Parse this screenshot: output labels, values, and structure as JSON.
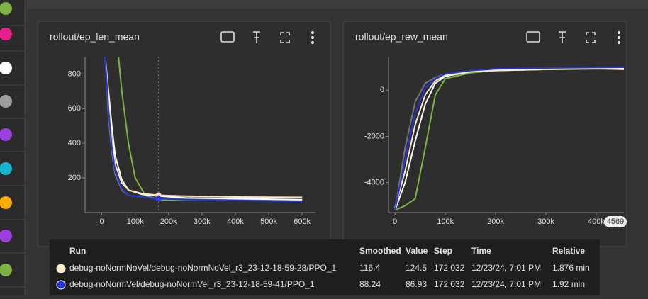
{
  "sidebar_colors": [
    "#7cb342",
    "#e91e8c",
    "#ffffff",
    "#9e9e9e",
    "#9c3fe0",
    "#12b5cb",
    "#f9ab00",
    "#9c3fe0",
    "#7cb342"
  ],
  "charts": [
    {
      "title": "rollout/ep_len_mean",
      "xlim": [
        -50000,
        640000
      ],
      "ylim": [
        0,
        900
      ],
      "xticks": [
        0,
        {
          "value": 100000,
          "label": "100k"
        },
        {
          "value": 200000,
          "label": "200k"
        },
        {
          "value": 300000,
          "label": "300k"
        },
        {
          "value": 400000,
          "label": "400k"
        },
        {
          "value": 500000,
          "label": "500k"
        },
        {
          "value": 600000,
          "label": "600k"
        }
      ],
      "yticks": [
        200,
        400,
        600,
        800
      ],
      "series": [
        {
          "color": "#757575",
          "x": [
            10000,
            20000,
            30000,
            40000,
            60000,
            80000,
            120000,
            170000,
            250000,
            400000,
            600000
          ],
          "values": [
            900,
            550,
            350,
            220,
            130,
            100,
            90,
            80,
            78,
            75,
            72
          ]
        },
        {
          "color": "#7cb342",
          "x": [
            50000,
            60000,
            80000,
            100000,
            130000,
            170000,
            250000,
            400000,
            600000
          ],
          "values": [
            900,
            700,
            400,
            200,
            100,
            75,
            70,
            70,
            68
          ]
        },
        {
          "color": "#ffffff",
          "x": [
            10000,
            20000,
            30000,
            40000,
            60000,
            80000,
            120000,
            170000,
            250000,
            400000,
            600000
          ],
          "values": [
            900,
            700,
            500,
            330,
            190,
            130,
            105,
            95,
            85,
            80,
            75
          ]
        },
        {
          "color": "#fde8c4",
          "x": [
            10000,
            20000,
            30000,
            40000,
            60000,
            80000,
            120000,
            170000,
            250000,
            400000,
            600000
          ],
          "values": [
            900,
            650,
            420,
            280,
            170,
            130,
            110,
            100,
            95,
            90,
            88
          ]
        },
        {
          "color": "#2233e0",
          "x": [
            10000,
            20000,
            30000,
            40000,
            60000,
            80000,
            120000,
            170000,
            250000,
            400000,
            600000
          ],
          "values": [
            900,
            600,
            380,
            240,
            140,
            100,
            90,
            80,
            75,
            70,
            65
          ]
        }
      ]
    },
    {
      "title": "rollout/ep_rew_mean",
      "xlim": [
        -13000,
        455000
      ],
      "ylim": [
        -5300,
        1450
      ],
      "xticks": [
        0,
        {
          "value": 100000,
          "label": "100k"
        },
        {
          "value": 200000,
          "label": "200k"
        },
        {
          "value": 300000,
          "label": "300k"
        },
        {
          "value": 400000,
          "label": "400k"
        }
      ],
      "yticks": [
        -4000,
        -2000,
        0
      ],
      "badge": "4569",
      "series": [
        {
          "color": "#757575",
          "x": [
            0,
            20000,
            40000,
            60000,
            80000,
            100000,
            150000,
            200000,
            300000,
            400000,
            455000
          ],
          "values": [
            -5200,
            -2500,
            -500,
            300,
            550,
            700,
            800,
            850,
            900,
            920,
            930
          ]
        },
        {
          "color": "#7cb342",
          "x": [
            0,
            20000,
            40000,
            60000,
            80000,
            100000,
            150000,
            200000,
            300000,
            400000,
            455000
          ],
          "values": [
            -5200,
            -5000,
            -4700,
            -2500,
            -200,
            500,
            750,
            850,
            900,
            920,
            930
          ]
        },
        {
          "color": "#ffffff",
          "x": [
            0,
            20000,
            40000,
            60000,
            80000,
            100000,
            150000,
            200000,
            300000,
            400000,
            455000
          ],
          "values": [
            -5200,
            -4000,
            -2200,
            -600,
            300,
            600,
            800,
            880,
            930,
            950,
            960
          ]
        },
        {
          "color": "#fde8c4",
          "x": [
            0,
            20000,
            40000,
            60000,
            80000,
            100000,
            150000,
            200000,
            300000,
            400000,
            455000
          ],
          "values": [
            -5100,
            -3500,
            -1500,
            -200,
            400,
            650,
            800,
            850,
            900,
            930,
            900
          ]
        },
        {
          "color": "#2233e0",
          "x": [
            0,
            20000,
            40000,
            60000,
            80000,
            100000,
            150000,
            200000,
            300000,
            400000,
            455000
          ],
          "values": [
            -5200,
            -3000,
            -1000,
            100,
            500,
            700,
            850,
            920,
            960,
            980,
            990
          ]
        }
      ]
    }
  ],
  "tooltip": {
    "headers": [
      "Run",
      "Smoothed",
      "Value",
      "Step",
      "Time",
      "Relative"
    ],
    "rows": [
      {
        "color": "#fde8c4",
        "cells": [
          "debug-noNormNoVel/debug-noNormNoVel_r3_23-12-18-59-28/PPO_1",
          "116.4",
          "124.5",
          "172 032",
          "12/23/24, 7:01 PM",
          "1.876 min"
        ]
      },
      {
        "color": "#2233e0",
        "cells": [
          "debug-noNormVel/debug-noNormVel_r3_23-12-18-59-41/PPO_1",
          "88.24",
          "86.93",
          "172 032",
          "12/23/24, 7:01 PM",
          "1.92 min"
        ]
      }
    ]
  }
}
